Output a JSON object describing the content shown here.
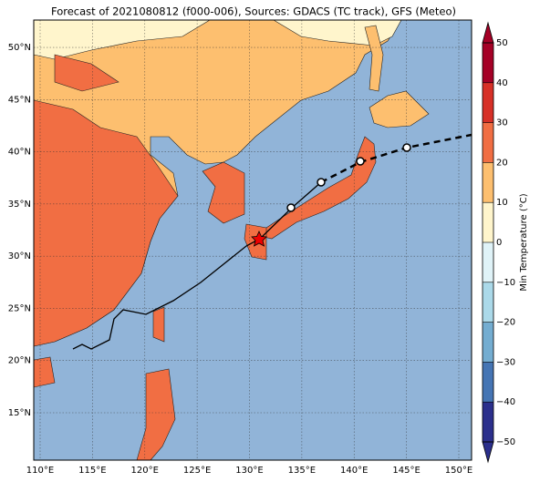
{
  "title": "Forecast of 2021080812 (f000-006), Sources: GDACS (TC track), GFS (Meteo)",
  "map": {
    "ocean_color": "#91b4d8",
    "xlim": [
      109.39,
      151.22
    ],
    "ylim": [
      10.46,
      52.62
    ],
    "xticks": [
      {
        "value": 110,
        "label": "110°E"
      },
      {
        "value": 115,
        "label": "115°E"
      },
      {
        "value": 120,
        "label": "120°E"
      },
      {
        "value": 125,
        "label": "125°E"
      },
      {
        "value": 130,
        "label": "130°E"
      },
      {
        "value": 135,
        "label": "135°E"
      },
      {
        "value": 140,
        "label": "140°E"
      },
      {
        "value": 145,
        "label": "145°E"
      },
      {
        "value": 150,
        "label": "150°E"
      }
    ],
    "yticks": [
      {
        "value": 15,
        "label": "15°N"
      },
      {
        "value": 20,
        "label": "20°N"
      },
      {
        "value": 25,
        "label": "25°N"
      },
      {
        "value": 30,
        "label": "30°N"
      },
      {
        "value": 35,
        "label": "35°N"
      },
      {
        "value": 40,
        "label": "40°N"
      },
      {
        "value": 45,
        "label": "45°N"
      },
      {
        "value": 50,
        "label": "50°N"
      }
    ]
  },
  "colorbar": {
    "label": "Min Temperature (°C)",
    "lim": [
      -50,
      50
    ],
    "ticks": [
      {
        "value": -50,
        "label": "−50"
      },
      {
        "value": -40,
        "label": "−40"
      },
      {
        "value": -30,
        "label": "−30"
      },
      {
        "value": -20,
        "label": "−20"
      },
      {
        "value": -10,
        "label": "−10"
      },
      0,
      10,
      20,
      30,
      40,
      50
    ],
    "colors": [
      "#2b2f8c",
      "#4575b4",
      "#74add1",
      "#abd9e9",
      "#e0f3f8",
      "#fff5cc",
      "#fdbf6f",
      "#f16e43",
      "#d73027",
      "#a50026"
    ]
  }
}
